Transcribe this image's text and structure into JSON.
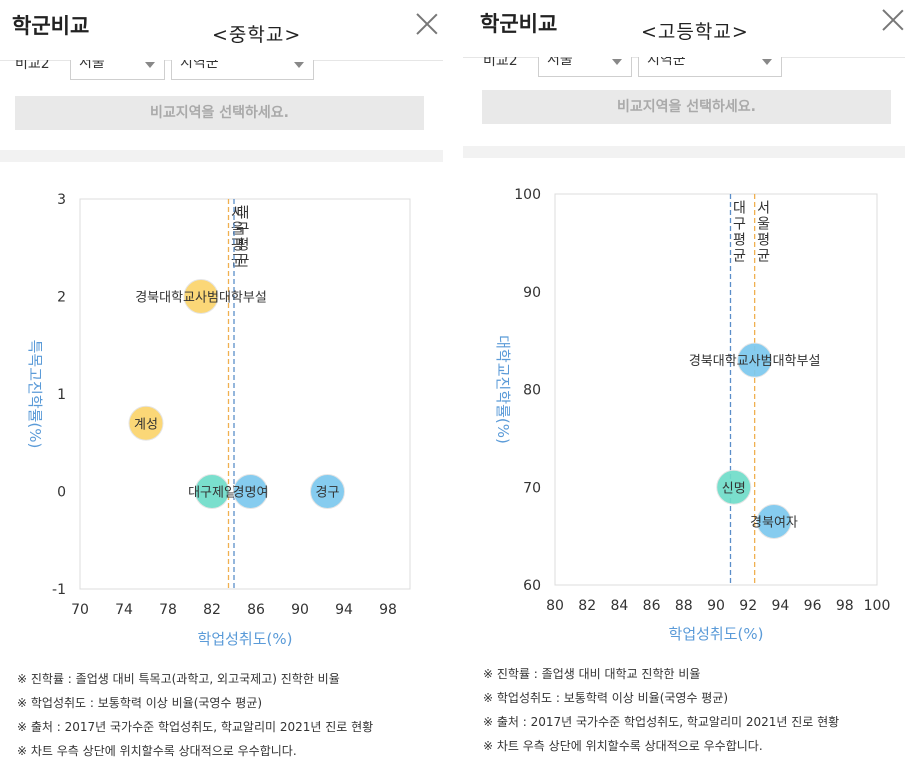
{
  "panels": {
    "middle": {
      "title": "학군비교",
      "subtitle": "<중학교>",
      "filter_label": "비교2",
      "select_city": "서울",
      "select_district": "지역군",
      "compare_button": "비교지역을 선택하세요.",
      "notes": [
        "※ 진학률 : 졸업생 대비 특목고(과학고, 외고국제고) 진학한 비율",
        "※ 학업성취도 : 보통학력 이상 비율(국영수 평균)",
        "※ 출처 : 2017년 국가수준 학업성취도, 학교알리미 2021년 진로 현황",
        "※ 차트 우측 상단에 위치할수록 상대적으로 우수합니다."
      ]
    },
    "high": {
      "title": "학군비교",
      "subtitle": "<고등학교>",
      "filter_label": "비교2",
      "select_city": "서울",
      "select_district": "지역군",
      "compare_button": "비교지역을 선택하세요.",
      "notes": [
        "※ 진학률 : 졸업생 대비 대학교 진학한 비율",
        "※ 학업성취도 : 보통학력 이상 비율(국영수 평균)",
        "※ 출처 : 2017년 국가수준 학업성취도, 학교알리미 2021년 진로 현황",
        "※ 차트 우측 상단에 위치할수록 상대적으로 우수합니다."
      ]
    }
  },
  "chart_data": [
    {
      "type": "scatter",
      "panel": "middle",
      "xlabel": "학업성취도(%)",
      "ylabel": "특목고진학률(%)",
      "xlim": [
        70,
        100
      ],
      "ylim": [
        -1,
        3
      ],
      "xticks": [
        70,
        74,
        78,
        82,
        86,
        90,
        94,
        98
      ],
      "yticks": [
        -1,
        0,
        1,
        2,
        3
      ],
      "ref_lines": [
        {
          "label": "서울평균",
          "x": 83.5,
          "color": "#f0b050"
        },
        {
          "label": "대구평균",
          "x": 84.0,
          "color": "#5b8ec9"
        }
      ],
      "points": [
        {
          "label": "경북대학교사범대학부설",
          "x": 81,
          "y": 2.0,
          "color": "#fbd46b"
        },
        {
          "label": "계성",
          "x": 76,
          "y": 0.7,
          "color": "#fbd46b"
        },
        {
          "label": "대구제일",
          "x": 82,
          "y": 0,
          "color": "#6fdcc9"
        },
        {
          "label": "경명여",
          "x": 85.5,
          "y": 0,
          "color": "#7cc8ee"
        },
        {
          "label": "경구",
          "x": 92.5,
          "y": 0,
          "color": "#7cc8ee"
        }
      ]
    },
    {
      "type": "scatter",
      "panel": "high",
      "xlabel": "학업성취도(%)",
      "ylabel": "대학교진학률(%)",
      "xlim": [
        80,
        100
      ],
      "ylim": [
        60,
        100
      ],
      "xticks": [
        80,
        82,
        84,
        86,
        88,
        90,
        92,
        94,
        96,
        98,
        100
      ],
      "yticks": [
        60,
        70,
        80,
        90,
        100
      ],
      "ref_lines": [
        {
          "label": "대구평균",
          "x": 90.9,
          "color": "#5b8ec9"
        },
        {
          "label": "서울평균",
          "x": 92.4,
          "color": "#f0b050"
        }
      ],
      "points": [
        {
          "label": "경북대학교사범대학부설",
          "x": 92.4,
          "y": 83,
          "color": "#7cc8ee"
        },
        {
          "label": "신명",
          "x": 91.1,
          "y": 70,
          "color": "#6fdcc9"
        },
        {
          "label": "경북여자",
          "x": 93.6,
          "y": 66.5,
          "color": "#7cc8ee"
        }
      ]
    }
  ]
}
